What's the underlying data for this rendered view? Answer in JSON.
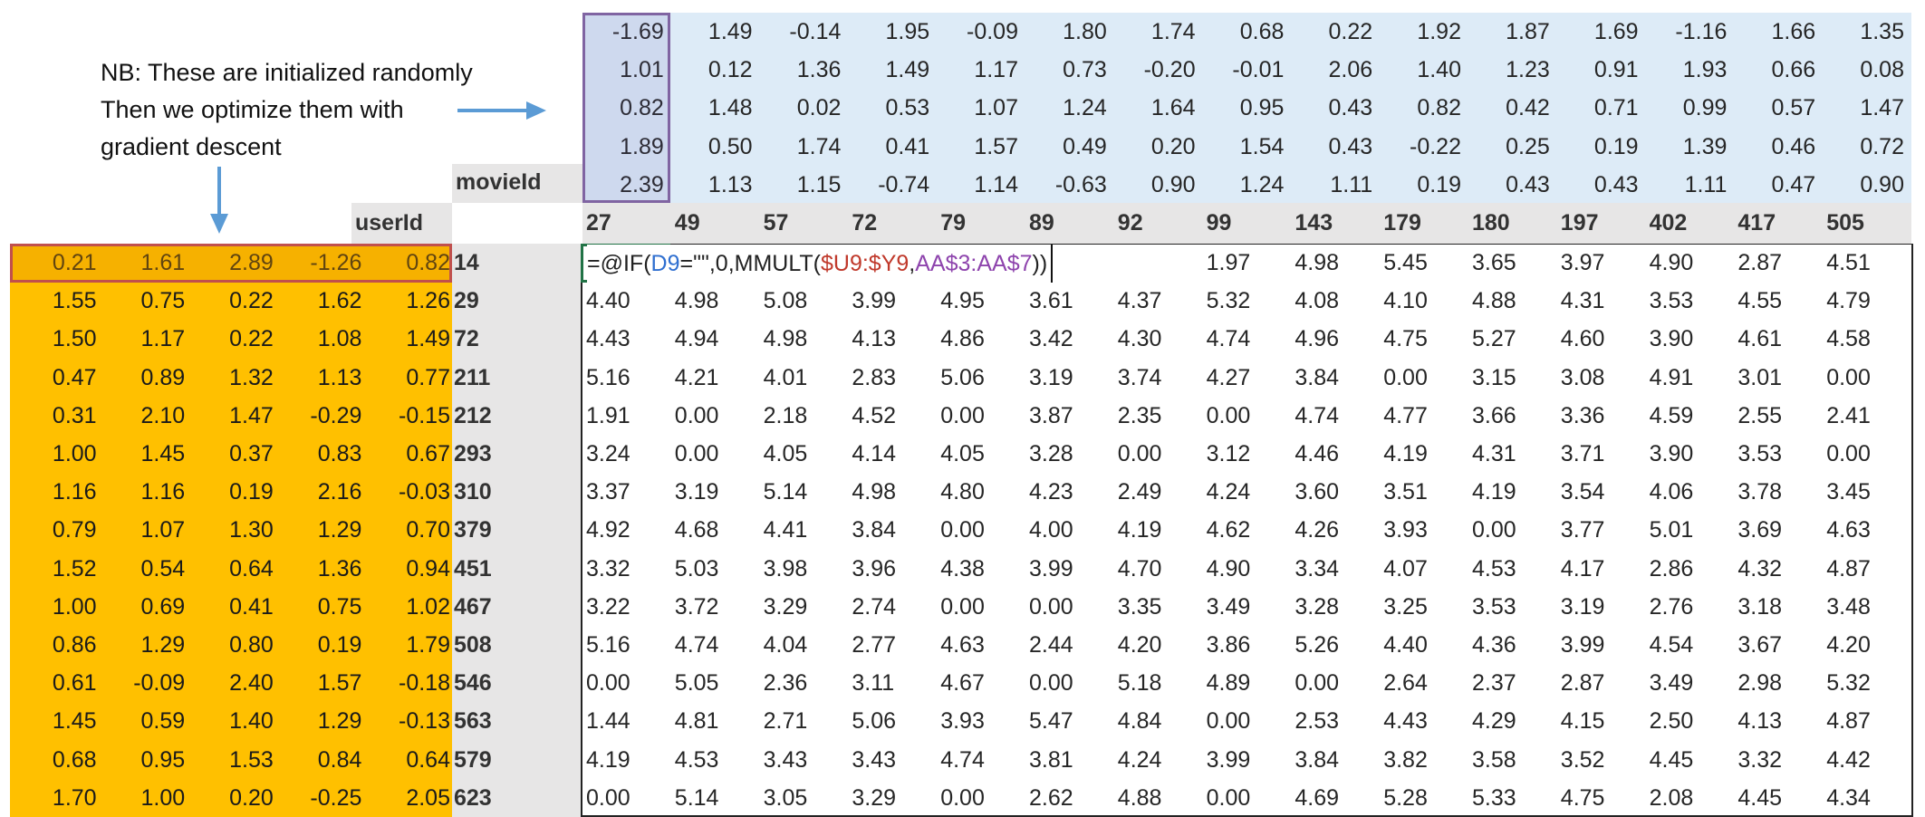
{
  "annotation": {
    "lines": [
      "NB: These are initialized randomly",
      "Then we optimize them with",
      "gradient descent"
    ]
  },
  "labels": {
    "movie_header": "movieId",
    "user_header": "userId"
  },
  "colors": {
    "user_factors": "#ffc000",
    "movie_factors": "#ddebf7",
    "header_gray": "#e7e6e6",
    "arrow": "#5b9bd5",
    "selected_row_border": "#c0504d",
    "selected_col_border": "#8064a2",
    "active_cell_border": "#217346"
  },
  "movie_ids": [
    "27",
    "49",
    "57",
    "72",
    "79",
    "89",
    "92",
    "99",
    "143",
    "179",
    "180",
    "197",
    "402",
    "417",
    "505"
  ],
  "movie_factors": [
    [
      "-1.69",
      "1.49",
      "-0.14",
      "1.95",
      "-0.09",
      "1.80",
      "1.74",
      "0.68",
      "0.22",
      "1.92",
      "1.87",
      "1.69",
      "-1.16",
      "1.66",
      "1.35"
    ],
    [
      "1.01",
      "0.12",
      "1.36",
      "1.49",
      "1.17",
      "0.73",
      "-0.20",
      "-0.01",
      "2.06",
      "1.40",
      "1.23",
      "0.91",
      "1.93",
      "0.66",
      "0.08"
    ],
    [
      "0.82",
      "1.48",
      "0.02",
      "0.53",
      "1.07",
      "1.24",
      "1.64",
      "0.95",
      "0.43",
      "0.82",
      "0.42",
      "0.71",
      "0.99",
      "0.57",
      "1.47"
    ],
    [
      "1.89",
      "0.50",
      "1.74",
      "0.41",
      "1.57",
      "0.49",
      "0.20",
      "1.54",
      "0.43",
      "-0.22",
      "0.25",
      "0.19",
      "1.39",
      "0.46",
      "0.72"
    ],
    [
      "2.39",
      "1.13",
      "1.15",
      "-0.74",
      "1.14",
      "-0.63",
      "0.90",
      "1.24",
      "1.11",
      "0.19",
      "0.43",
      "0.43",
      "1.11",
      "0.47",
      "0.90"
    ]
  ],
  "user_ids": [
    "14",
    "29",
    "72",
    "211",
    "212",
    "293",
    "310",
    "379",
    "451",
    "467",
    "508",
    "546",
    "563",
    "579",
    "623"
  ],
  "user_factors": [
    [
      "0.21",
      "1.61",
      "2.89",
      "-1.26",
      "0.82"
    ],
    [
      "1.55",
      "0.75",
      "0.22",
      "1.62",
      "1.26"
    ],
    [
      "1.50",
      "1.17",
      "0.22",
      "1.08",
      "1.49"
    ],
    [
      "0.47",
      "0.89",
      "1.32",
      "1.13",
      "0.77"
    ],
    [
      "0.31",
      "2.10",
      "1.47",
      "-0.29",
      "-0.15"
    ],
    [
      "1.00",
      "1.45",
      "0.37",
      "0.83",
      "0.67"
    ],
    [
      "1.16",
      "1.16",
      "0.19",
      "2.16",
      "-0.03"
    ],
    [
      "0.79",
      "1.07",
      "1.30",
      "1.29",
      "0.70"
    ],
    [
      "1.52",
      "0.54",
      "0.64",
      "1.36",
      "0.94"
    ],
    [
      "1.00",
      "0.69",
      "0.41",
      "0.75",
      "1.02"
    ],
    [
      "0.86",
      "1.29",
      "0.80",
      "0.19",
      "1.79"
    ],
    [
      "0.61",
      "-0.09",
      "2.40",
      "1.57",
      "-0.18"
    ],
    [
      "1.45",
      "0.59",
      "1.40",
      "1.29",
      "-0.13"
    ],
    [
      "0.68",
      "0.95",
      "1.53",
      "0.84",
      "0.64"
    ],
    [
      "1.70",
      "1.00",
      "0.20",
      "-0.25",
      "2.05"
    ]
  ],
  "formula": {
    "parts": [
      {
        "text": "=@IF(",
        "color": "#222222"
      },
      {
        "text": "D9",
        "color": "#2f6fd0"
      },
      {
        "text": "=\"\",0,MMULT(",
        "color": "#222222"
      },
      {
        "text": "$U9:$Y9",
        "color": "#c0392b"
      },
      {
        "text": ",",
        "color": "#222222"
      },
      {
        "text": "AA$3:AA$7",
        "color": "#8e44ad"
      },
      {
        "text": "))",
        "color": "#222222"
      }
    ]
  },
  "predictions": [
    [
      null,
      null,
      null,
      null,
      null,
      null,
      null,
      "1.97",
      "4.98",
      "5.45",
      "3.65",
      "3.97",
      "4.90",
      "2.87",
      "4.51"
    ],
    [
      "4.40",
      "4.98",
      "5.08",
      "3.99",
      "4.95",
      "3.61",
      "4.37",
      "5.32",
      "4.08",
      "4.10",
      "4.88",
      "4.31",
      "3.53",
      "4.55",
      "4.79"
    ],
    [
      "4.43",
      "4.94",
      "4.98",
      "4.13",
      "4.86",
      "3.42",
      "4.30",
      "4.74",
      "4.96",
      "4.75",
      "5.27",
      "4.60",
      "3.90",
      "4.61",
      "4.58"
    ],
    [
      "5.16",
      "4.21",
      "4.01",
      "2.83",
      "5.06",
      "3.19",
      "3.74",
      "4.27",
      "3.84",
      "0.00",
      "3.15",
      "3.08",
      "4.91",
      "3.01",
      "0.00"
    ],
    [
      "1.91",
      "0.00",
      "2.18",
      "4.52",
      "0.00",
      "3.87",
      "2.35",
      "0.00",
      "4.74",
      "4.77",
      "3.66",
      "3.36",
      "4.59",
      "2.55",
      "2.41"
    ],
    [
      "3.24",
      "0.00",
      "4.05",
      "4.14",
      "4.05",
      "3.28",
      "0.00",
      "3.12",
      "4.46",
      "4.19",
      "4.31",
      "3.71",
      "3.90",
      "3.53",
      "0.00"
    ],
    [
      "3.37",
      "3.19",
      "5.14",
      "4.98",
      "4.80",
      "4.23",
      "2.49",
      "4.24",
      "3.60",
      "3.51",
      "4.19",
      "3.54",
      "4.06",
      "3.78",
      "3.45"
    ],
    [
      "4.92",
      "4.68",
      "4.41",
      "3.84",
      "0.00",
      "4.00",
      "4.19",
      "4.62",
      "4.26",
      "3.93",
      "0.00",
      "3.77",
      "5.01",
      "3.69",
      "4.63"
    ],
    [
      "3.32",
      "5.03",
      "3.98",
      "3.96",
      "4.38",
      "3.99",
      "4.70",
      "4.90",
      "3.34",
      "4.07",
      "4.53",
      "4.17",
      "2.86",
      "4.32",
      "4.87"
    ],
    [
      "3.22",
      "3.72",
      "3.29",
      "2.74",
      "0.00",
      "0.00",
      "3.35",
      "3.49",
      "3.28",
      "3.25",
      "3.53",
      "3.19",
      "2.76",
      "3.18",
      "3.48"
    ],
    [
      "5.16",
      "4.74",
      "4.04",
      "2.77",
      "4.63",
      "2.44",
      "4.20",
      "3.86",
      "5.26",
      "4.40",
      "4.36",
      "3.99",
      "4.54",
      "3.67",
      "4.20"
    ],
    [
      "0.00",
      "5.05",
      "2.36",
      "3.11",
      "4.67",
      "0.00",
      "5.18",
      "4.89",
      "0.00",
      "2.64",
      "2.37",
      "2.87",
      "3.49",
      "2.98",
      "5.32"
    ],
    [
      "1.44",
      "4.81",
      "2.71",
      "5.06",
      "3.93",
      "5.47",
      "4.84",
      "0.00",
      "2.53",
      "4.43",
      "4.29",
      "4.15",
      "2.50",
      "4.13",
      "4.87"
    ],
    [
      "4.19",
      "4.53",
      "3.43",
      "3.43",
      "4.74",
      "3.81",
      "4.24",
      "3.99",
      "3.84",
      "3.82",
      "3.58",
      "3.52",
      "4.45",
      "3.32",
      "4.42"
    ],
    [
      "0.00",
      "5.14",
      "3.05",
      "3.29",
      "0.00",
      "2.62",
      "4.88",
      "0.00",
      "4.69",
      "5.28",
      "5.33",
      "4.75",
      "2.08",
      "4.45",
      "4.34"
    ]
  ]
}
